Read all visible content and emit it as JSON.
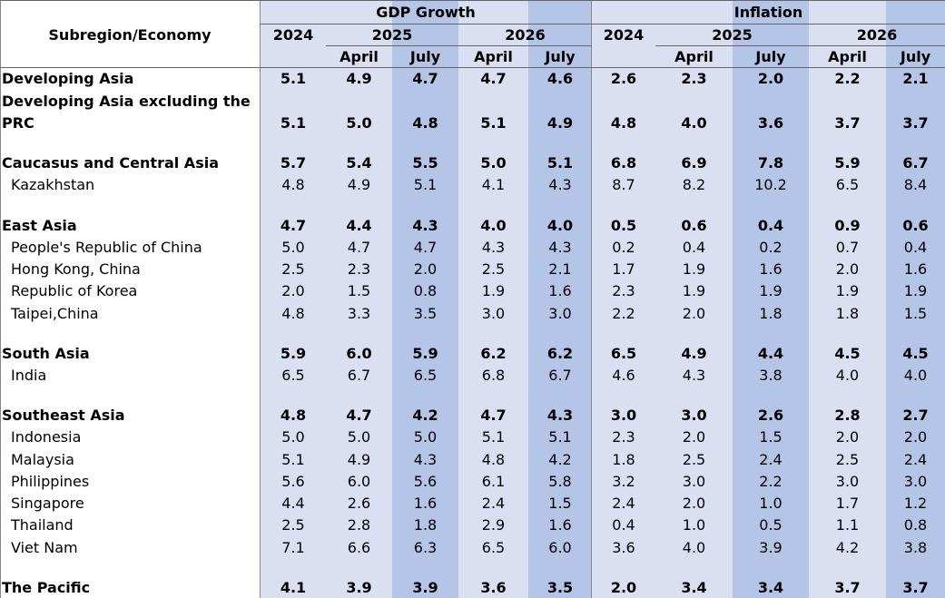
{
  "header": {
    "subregion_label": "Subregion/Economy",
    "gdp_group": "GDP Growth",
    "inflation_group": "Inflation",
    "years": [
      "2024",
      "2025",
      "2026"
    ],
    "months": [
      "April",
      "July"
    ]
  },
  "colors": {
    "light_band": "#dae0f1",
    "dark_band": "#b4c5e7"
  },
  "rows": [
    {
      "label": "Developing Asia",
      "bold": true,
      "indent": false,
      "gdp": [
        "5.1",
        "4.9",
        "4.7",
        "4.7",
        "4.6"
      ],
      "inf": [
        "2.6",
        "2.3",
        "2.0",
        "2.2",
        "2.1"
      ]
    },
    {
      "label": "Developing Asia excluding the",
      "label2": "PRC",
      "bold": true,
      "indent": false,
      "gdp": [
        "5.1",
        "5.0",
        "4.8",
        "5.1",
        "4.9"
      ],
      "inf": [
        "4.8",
        "4.0",
        "3.6",
        "3.7",
        "3.7"
      ]
    },
    {
      "label": "Caucasus and Central Asia",
      "bold": true,
      "indent": false,
      "gdp": [
        "5.7",
        "5.4",
        "5.5",
        "5.0",
        "5.1"
      ],
      "inf": [
        "6.8",
        "6.9",
        "7.8",
        "5.9",
        "6.7"
      ]
    },
    {
      "label": "Kazakhstan",
      "bold": false,
      "indent": true,
      "gdp": [
        "4.8",
        "4.9",
        "5.1",
        "4.1",
        "4.3"
      ],
      "inf": [
        "8.7",
        "8.2",
        "10.2",
        "6.5",
        "8.4"
      ]
    },
    {
      "label": "East Asia",
      "bold": true,
      "indent": false,
      "gdp": [
        "4.7",
        "4.4",
        "4.3",
        "4.0",
        "4.0"
      ],
      "inf": [
        "0.5",
        "0.6",
        "0.4",
        "0.9",
        "0.6"
      ]
    },
    {
      "label": "People's Republic of China",
      "bold": false,
      "indent": true,
      "gdp": [
        "5.0",
        "4.7",
        "4.7",
        "4.3",
        "4.3"
      ],
      "inf": [
        "0.2",
        "0.4",
        "0.2",
        "0.7",
        "0.4"
      ]
    },
    {
      "label": "Hong Kong, China",
      "bold": false,
      "indent": true,
      "gdp": [
        "2.5",
        "2.3",
        "2.0",
        "2.5",
        "2.1"
      ],
      "inf": [
        "1.7",
        "1.9",
        "1.6",
        "2.0",
        "1.6"
      ]
    },
    {
      "label": "Republic of Korea",
      "bold": false,
      "indent": true,
      "gdp": [
        "2.0",
        "1.5",
        "0.8",
        "1.9",
        "1.6"
      ],
      "inf": [
        "2.3",
        "1.9",
        "1.9",
        "1.9",
        "1.9"
      ]
    },
    {
      "label": "Taipei,China",
      "bold": false,
      "indent": true,
      "gdp": [
        "4.8",
        "3.3",
        "3.5",
        "3.0",
        "3.0"
      ],
      "inf": [
        "2.2",
        "2.0",
        "1.8",
        "1.8",
        "1.5"
      ]
    },
    {
      "label": "South Asia",
      "bold": true,
      "indent": false,
      "gdp": [
        "5.9",
        "6.0",
        "5.9",
        "6.2",
        "6.2"
      ],
      "inf": [
        "6.5",
        "4.9",
        "4.4",
        "4.5",
        "4.5"
      ]
    },
    {
      "label": "India",
      "bold": false,
      "indent": true,
      "gdp": [
        "6.5",
        "6.7",
        "6.5",
        "6.8",
        "6.7"
      ],
      "inf": [
        "4.6",
        "4.3",
        "3.8",
        "4.0",
        "4.0"
      ]
    },
    {
      "label": "Southeast Asia",
      "bold": true,
      "indent": false,
      "gdp": [
        "4.8",
        "4.7",
        "4.2",
        "4.7",
        "4.3"
      ],
      "inf": [
        "3.0",
        "3.0",
        "2.6",
        "2.8",
        "2.7"
      ]
    },
    {
      "label": "Indonesia",
      "bold": false,
      "indent": true,
      "gdp": [
        "5.0",
        "5.0",
        "5.0",
        "5.1",
        "5.1"
      ],
      "inf": [
        "2.3",
        "2.0",
        "1.5",
        "2.0",
        "2.0"
      ]
    },
    {
      "label": "Malaysia",
      "bold": false,
      "indent": true,
      "gdp": [
        "5.1",
        "4.9",
        "4.3",
        "4.8",
        "4.2"
      ],
      "inf": [
        "1.8",
        "2.5",
        "2.4",
        "2.5",
        "2.4"
      ]
    },
    {
      "label": "Philippines",
      "bold": false,
      "indent": true,
      "gdp": [
        "5.6",
        "6.0",
        "5.6",
        "6.1",
        "5.8"
      ],
      "inf": [
        "3.2",
        "3.0",
        "2.2",
        "3.0",
        "3.0"
      ]
    },
    {
      "label": "Singapore",
      "bold": false,
      "indent": true,
      "gdp": [
        "4.4",
        "2.6",
        "1.6",
        "2.4",
        "1.5"
      ],
      "inf": [
        "2.4",
        "2.0",
        "1.0",
        "1.7",
        "1.2"
      ]
    },
    {
      "label": "Thailand",
      "bold": false,
      "indent": true,
      "gdp": [
        "2.5",
        "2.8",
        "1.8",
        "2.9",
        "1.6"
      ],
      "inf": [
        "0.4",
        "1.0",
        "0.5",
        "1.1",
        "0.8"
      ]
    },
    {
      "label": "Viet Nam",
      "bold": false,
      "indent": true,
      "gdp": [
        "7.1",
        "6.6",
        "6.3",
        "6.5",
        "6.0"
      ],
      "inf": [
        "3.6",
        "4.0",
        "3.9",
        "4.2",
        "3.8"
      ]
    },
    {
      "label": "The Pacific",
      "bold": true,
      "indent": false,
      "gdp": [
        "4.1",
        "3.9",
        "3.9",
        "3.6",
        "3.5"
      ],
      "inf": [
        "2.0",
        "3.4",
        "3.4",
        "3.7",
        "3.7"
      ]
    }
  ]
}
